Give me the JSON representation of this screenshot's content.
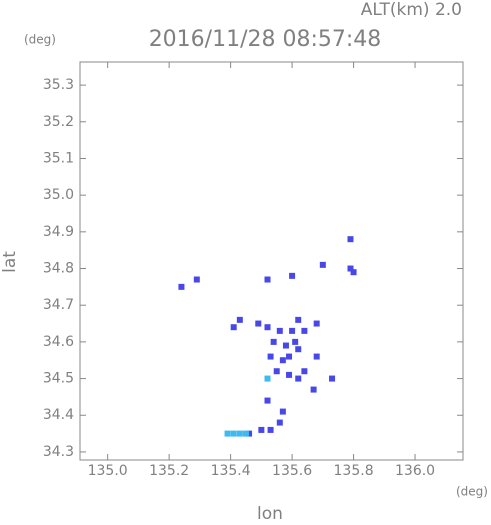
{
  "chart_data": {
    "type": "scatter",
    "title": "2016/11/28 08:57:48",
    "subtitle": "ALT(km) 2.0",
    "x_label": "lon",
    "y_label": "lat",
    "x_unit": "(deg)",
    "y_unit": "(deg)",
    "xlim": [
      134.91,
      136.156
    ],
    "ylim": [
      34.278,
      35.363
    ],
    "xticks": [
      {
        "value": 135,
        "label": "135.0"
      },
      135.2,
      135.4,
      135.6,
      135.8,
      {
        "value": 136,
        "label": "136.0"
      }
    ],
    "yticks": [
      34.3,
      34.4,
      34.5,
      34.6,
      34.7,
      34.8,
      34.9,
      {
        "value": 35,
        "label": "35.0"
      },
      35.1,
      35.2,
      35.3
    ],
    "series": [
      {
        "color": "#4848e8",
        "x": [
          135.24,
          135.29,
          135.52,
          135.6,
          135.7,
          135.79,
          135.79,
          135.8,
          135.41,
          135.43,
          135.49,
          135.52,
          135.56,
          135.6,
          135.62,
          135.64,
          135.68,
          135.54,
          135.58,
          135.61,
          135.53,
          135.57,
          135.59,
          135.62,
          135.68,
          135.55,
          135.59,
          135.62,
          135.67,
          135.73,
          135.64,
          135.52,
          135.57,
          135.56,
          135.46,
          135.5,
          135.53
        ],
        "values": [
          34.75,
          34.77,
          34.77,
          34.78,
          34.81,
          34.88,
          34.8,
          34.79,
          34.64,
          34.66,
          34.65,
          34.64,
          34.63,
          34.63,
          34.66,
          34.63,
          34.65,
          34.6,
          34.59,
          34.6,
          34.56,
          34.55,
          34.56,
          34.58,
          34.56,
          34.52,
          34.51,
          34.5,
          34.47,
          34.5,
          34.52,
          34.44,
          34.41,
          34.38,
          34.35,
          34.36,
          34.36
        ]
      },
      {
        "color": "#40b8f0",
        "x": [
          135.52,
          135.39,
          135.41,
          135.43,
          135.45
        ],
        "values": [
          34.5,
          34.35,
          34.35,
          34.35,
          34.35
        ]
      }
    ]
  }
}
